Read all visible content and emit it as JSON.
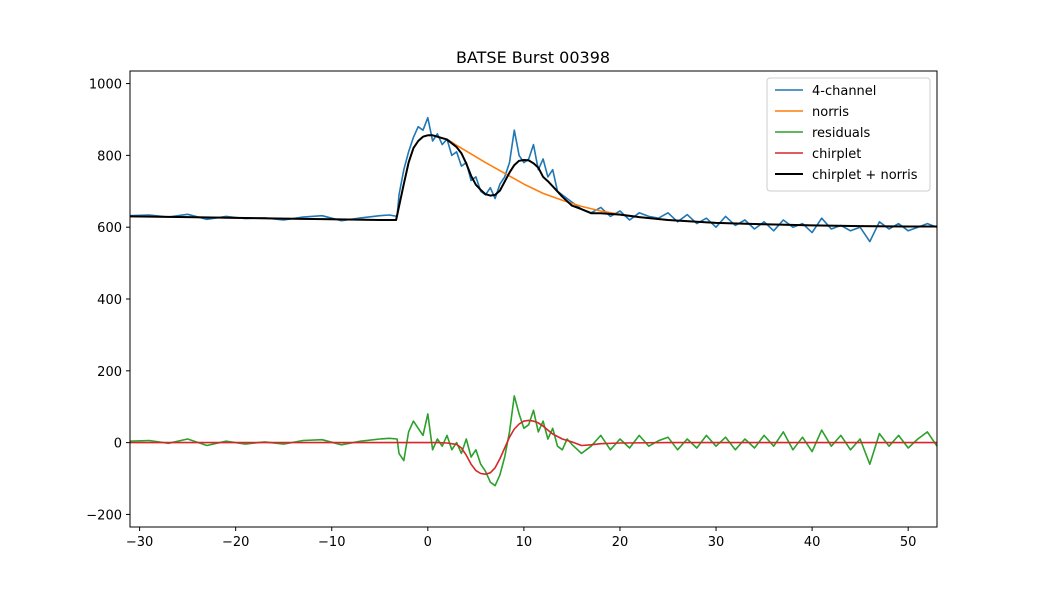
{
  "chart_data": {
    "type": "line",
    "title": "BATSE Burst 00398",
    "xlabel": "",
    "ylabel": "",
    "xlim": [
      -31,
      53
    ],
    "ylim": [
      -235,
      1035
    ],
    "x_ticks": [
      -30,
      -20,
      -10,
      0,
      10,
      20,
      30,
      40,
      50
    ],
    "y_ticks": [
      -200,
      0,
      200,
      400,
      600,
      800,
      1000
    ],
    "legend_position": "upper right",
    "grid": false,
    "series": [
      {
        "name": "4-channel",
        "color": "#1f77b4",
        "x": [
          -31,
          -29,
          -27,
          -25,
          -23,
          -21,
          -19,
          -17,
          -15,
          -13,
          -11,
          -9,
          -7,
          -5,
          -4,
          -3.2,
          -3,
          -2.5,
          -2,
          -1.5,
          -1,
          -0.5,
          0,
          0.5,
          1,
          1.5,
          2,
          2.5,
          3,
          3.5,
          4,
          4.5,
          5,
          5.5,
          6,
          6.5,
          7,
          7.5,
          8,
          8.5,
          9,
          9.5,
          10,
          10.5,
          11,
          11.5,
          12,
          12.5,
          13,
          13.5,
          14,
          14.5,
          15,
          16,
          17,
          18,
          19,
          20,
          21,
          22,
          23,
          24,
          25,
          26,
          27,
          28,
          29,
          30,
          31,
          32,
          33,
          34,
          35,
          36,
          37,
          38,
          39,
          40,
          41,
          42,
          43,
          44,
          45,
          46,
          47,
          48,
          49,
          50,
          51,
          52,
          53
        ],
        "y": [
          632,
          634,
          628,
          636,
          622,
          630,
          624,
          626,
          620,
          628,
          632,
          618,
          626,
          632,
          634,
          630,
          690,
          760,
          810,
          850,
          880,
          870,
          905,
          840,
          860,
          830,
          845,
          800,
          810,
          770,
          780,
          730,
          740,
          700,
          690,
          710,
          680,
          720,
          740,
          780,
          870,
          800,
          780,
          790,
          830,
          760,
          790,
          740,
          760,
          700,
          690,
          680,
          670,
          650,
          640,
          655,
          630,
          645,
          620,
          640,
          630,
          625,
          640,
          615,
          635,
          610,
          625,
          600,
          630,
          605,
          620,
          595,
          615,
          590,
          620,
          600,
          610,
          585,
          625,
          595,
          605,
          590,
          600,
          560,
          615,
          595,
          610,
          590,
          600,
          610,
          600
        ]
      },
      {
        "name": "norris",
        "color": "#ff7f0e",
        "x": [
          -31,
          -25,
          -20,
          -15,
          -10,
          -5,
          -3.3,
          -2.5,
          -2,
          -1.5,
          -1,
          -0.5,
          0,
          0.5,
          1,
          2,
          3,
          4,
          5,
          6,
          8,
          10,
          12,
          14,
          16,
          18,
          20,
          22,
          25,
          28,
          30,
          35,
          40,
          45,
          50,
          53
        ],
        "y": [
          630,
          628,
          626,
          624,
          622,
          620,
          620,
          720,
          780,
          820,
          840,
          852,
          856,
          856,
          852,
          845,
          828,
          812,
          796,
          780,
          750,
          720,
          694,
          675,
          658,
          645,
          636,
          628,
          620,
          615,
          612,
          608,
          605,
          603,
          602,
          602
        ]
      },
      {
        "name": "residuals",
        "color": "#2ca02c",
        "x": [
          -31,
          -29,
          -27,
          -25,
          -23,
          -21,
          -19,
          -17,
          -15,
          -13,
          -11,
          -9,
          -7,
          -5,
          -4,
          -3.2,
          -3,
          -2.5,
          -2,
          -1.5,
          -1,
          -0.5,
          0,
          0.5,
          1,
          1.5,
          2,
          2.5,
          3,
          3.5,
          4,
          4.5,
          5,
          5.5,
          6,
          6.5,
          7,
          7.5,
          8,
          8.5,
          9,
          9.5,
          10,
          10.5,
          11,
          11.5,
          12,
          12.5,
          13,
          13.5,
          14,
          14.5,
          15,
          16,
          17,
          18,
          19,
          20,
          21,
          22,
          23,
          24,
          25,
          26,
          27,
          28,
          29,
          30,
          31,
          32,
          33,
          34,
          35,
          36,
          37,
          38,
          39,
          40,
          41,
          42,
          43,
          44,
          45,
          46,
          47,
          48,
          49,
          50,
          51,
          52,
          53
        ],
        "y": [
          4,
          6,
          -2,
          10,
          -8,
          4,
          -4,
          2,
          -4,
          6,
          8,
          -6,
          4,
          10,
          12,
          10,
          -30,
          -50,
          30,
          60,
          40,
          20,
          80,
          -20,
          10,
          -10,
          20,
          -20,
          0,
          -30,
          10,
          -40,
          -20,
          -60,
          -80,
          -110,
          -120,
          -90,
          -40,
          30,
          130,
          80,
          40,
          50,
          90,
          30,
          60,
          10,
          40,
          -10,
          -20,
          10,
          -5,
          -30,
          -10,
          20,
          -20,
          10,
          -15,
          20,
          -10,
          5,
          15,
          -20,
          10,
          -15,
          20,
          -10,
          15,
          -20,
          10,
          -15,
          20,
          -10,
          30,
          -20,
          15,
          -25,
          35,
          -10,
          20,
          -20,
          10,
          -60,
          25,
          -10,
          20,
          -15,
          10,
          30,
          -10
        ]
      },
      {
        "name": "chirplet",
        "color": "#d62728",
        "x": [
          -31,
          -20,
          -10,
          -5,
          0,
          1,
          2,
          3,
          3.5,
          4,
          4.5,
          5,
          5.5,
          6,
          6.5,
          7,
          7.5,
          8,
          8.5,
          9,
          9.5,
          10,
          10.5,
          11,
          11.5,
          12,
          12.5,
          13,
          14,
          15,
          16,
          17,
          18,
          20,
          25,
          30,
          40,
          53
        ],
        "y": [
          0,
          0,
          0,
          0,
          0,
          0,
          -1,
          -5,
          -15,
          -35,
          -60,
          -78,
          -86,
          -88,
          -84,
          -70,
          -45,
          -15,
          15,
          38,
          52,
          60,
          62,
          60,
          55,
          46,
          35,
          24,
          10,
          2,
          -8,
          -6,
          -3,
          -1,
          0,
          0,
          0,
          0
        ]
      },
      {
        "name": "chirplet + norris",
        "color": "#000000",
        "x": [
          -31,
          -25,
          -20,
          -15,
          -10,
          -5,
          -3.3,
          -2.5,
          -2,
          -1.5,
          -1,
          -0.5,
          0,
          0.5,
          1,
          2,
          3,
          3.5,
          4,
          4.5,
          5,
          5.5,
          6,
          6.5,
          7,
          7.5,
          8,
          8.5,
          9,
          9.5,
          10,
          10.5,
          11,
          11.5,
          12,
          12.5,
          13,
          14,
          15,
          16,
          17,
          18,
          20,
          22,
          25,
          28,
          30,
          35,
          40,
          45,
          50,
          53
        ],
        "y": [
          630,
          628,
          626,
          624,
          622,
          620,
          620,
          720,
          780,
          820,
          840,
          852,
          856,
          856,
          852,
          844,
          823,
          806,
          777,
          743,
          718,
          704,
          692,
          688,
          690,
          702,
          727,
          752,
          773,
          785,
          787,
          786,
          778,
          766,
          740,
          728,
          714,
          685,
          660,
          650,
          639,
          639,
          635,
          628,
          620,
          615,
          612,
          608,
          605,
          603,
          602,
          602
        ]
      }
    ]
  }
}
